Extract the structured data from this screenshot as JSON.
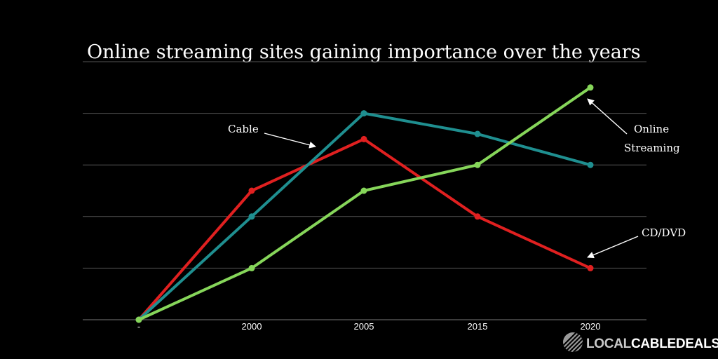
{
  "chart_data": {
    "type": "line",
    "title": "Online streaming sites gaining importance over the years",
    "categories": [
      "-",
      "2000",
      "2005",
      "2015",
      "2020"
    ],
    "ylim": [
      0,
      5
    ],
    "grid": true,
    "series": [
      {
        "name": "Cable",
        "color": "#e02020",
        "values": [
          0,
          2.5,
          3.5,
          2,
          1
        ]
      },
      {
        "name": "",
        "color": "#1f8f90",
        "values": [
          0,
          2,
          4,
          3.6,
          3
        ]
      },
      {
        "name": "Online Streaming",
        "color": "#86d65a",
        "values": [
          0,
          1,
          2.5,
          3,
          4.5
        ]
      }
    ],
    "annotations": [
      {
        "lines": [
          "Cable"
        ]
      },
      {
        "lines": [
          "Online",
          "Streaming"
        ]
      },
      {
        "lines": [
          "CD/DVD"
        ]
      }
    ]
  },
  "logo": {
    "part1": "LOCAL",
    "part2": "CABLEDEALS",
    "icon": "striped-globe-icon"
  }
}
